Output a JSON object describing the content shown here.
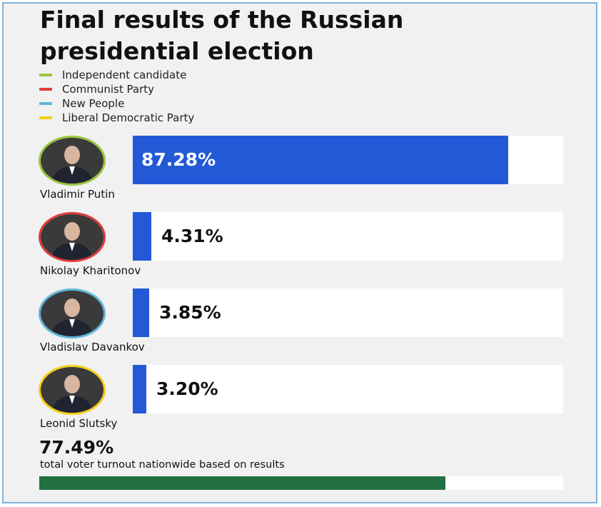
{
  "title_line1": "Final results of the Russian",
  "title_line2": "presidential election",
  "legend": [
    {
      "label": "Independent candidate",
      "color": "#9bc43b"
    },
    {
      "label": "Communist Party",
      "color": "#e23a3a"
    },
    {
      "label": "New People",
      "color": "#5db7d6"
    },
    {
      "label": "Liberal Democratic Party",
      "color": "#f2cf17"
    }
  ],
  "chart_data": {
    "type": "bar",
    "orientation": "horizontal",
    "title": "Final results of the Russian presidential election",
    "categories": [
      "Vladimir Putin",
      "Nikolay Kharitonov",
      "Vladislav Davankov",
      "Leonid Slutsky"
    ],
    "values": [
      87.28,
      4.31,
      3.85,
      3.2
    ],
    "value_labels": [
      "87.28%",
      "4.31%",
      "3.85%",
      "3.20%"
    ],
    "parties": [
      "Independent candidate",
      "Communist Party",
      "New People",
      "Liberal Democratic Party"
    ],
    "bar_color": "#2359d6",
    "xlim": [
      0,
      100
    ],
    "grid": false,
    "legend_position": "top-left"
  },
  "turnout": {
    "value": 77.49,
    "value_label": "77.49%",
    "label": "total voter turnout nationwide based on results",
    "bar_color": "#237043"
  }
}
